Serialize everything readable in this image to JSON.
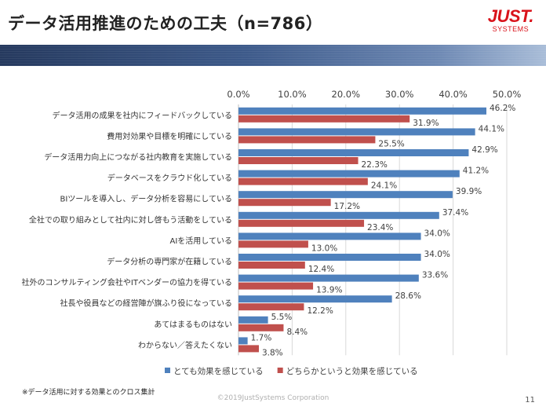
{
  "slide": {
    "title": "データ活用推進のための工夫（n=786）",
    "logo_main": "JUST.",
    "logo_sub": "SYSTEMS",
    "footnote": "※データ活用に対する効果とのクロス集計",
    "copyright": "©2019JustSystems Corporation",
    "page_number": "11"
  },
  "colors": {
    "series1": "#4f81bd",
    "series2": "#c0504d",
    "brand": "#d9131b"
  },
  "chart_data": {
    "type": "bar",
    "orientation": "horizontal",
    "xlim": [
      0,
      50
    ],
    "ticks": [
      "0.0%",
      "10.0%",
      "20.0%",
      "30.0%",
      "40.0%",
      "50.0%"
    ],
    "tick_values": [
      0,
      10,
      20,
      30,
      40,
      50
    ],
    "axis_position": "top",
    "grid": true,
    "legend_position": "bottom",
    "categories": [
      "データ活用の成果を社内にフィードバックしている",
      "費用対効果や目標を明確にしている",
      "データ活用力向上につながる社内教育を実施している",
      "データベースをクラウド化している",
      "BIツールを導入し、データ分析を容易にしている",
      "全社での取り組みとして社内に対し啓もう活動をしている",
      "AIを活用している",
      "データ分析の専門家が在籍している",
      "社外のコンサルティング会社やITベンダーの協力を得ている",
      "社長や役員などの経営陣が旗ふり役になっている",
      "あてはまるものはない",
      "わからない／答えたくない"
    ],
    "series": [
      {
        "name": "とても効果を感じている",
        "values": [
          46.2,
          44.1,
          42.9,
          41.2,
          39.9,
          37.4,
          34.0,
          34.0,
          33.6,
          28.6,
          5.5,
          1.7
        ],
        "labels": [
          "46.2%",
          "44.1%",
          "42.9%",
          "41.2%",
          "39.9%",
          "37.4%",
          "34.0%",
          "34.0%",
          "33.6%",
          "28.6%",
          "5.5%",
          "1.7%"
        ]
      },
      {
        "name": "どちらかというと効果を感じている",
        "values": [
          31.9,
          25.5,
          22.3,
          24.1,
          17.2,
          23.4,
          13.0,
          12.4,
          13.9,
          12.2,
          8.4,
          3.8
        ],
        "labels": [
          "31.9%",
          "25.5%",
          "22.3%",
          "24.1%",
          "17.2%",
          "23.4%",
          "13.0%",
          "12.4%",
          "13.9%",
          "12.2%",
          "8.4%",
          "3.8%"
        ]
      }
    ]
  }
}
